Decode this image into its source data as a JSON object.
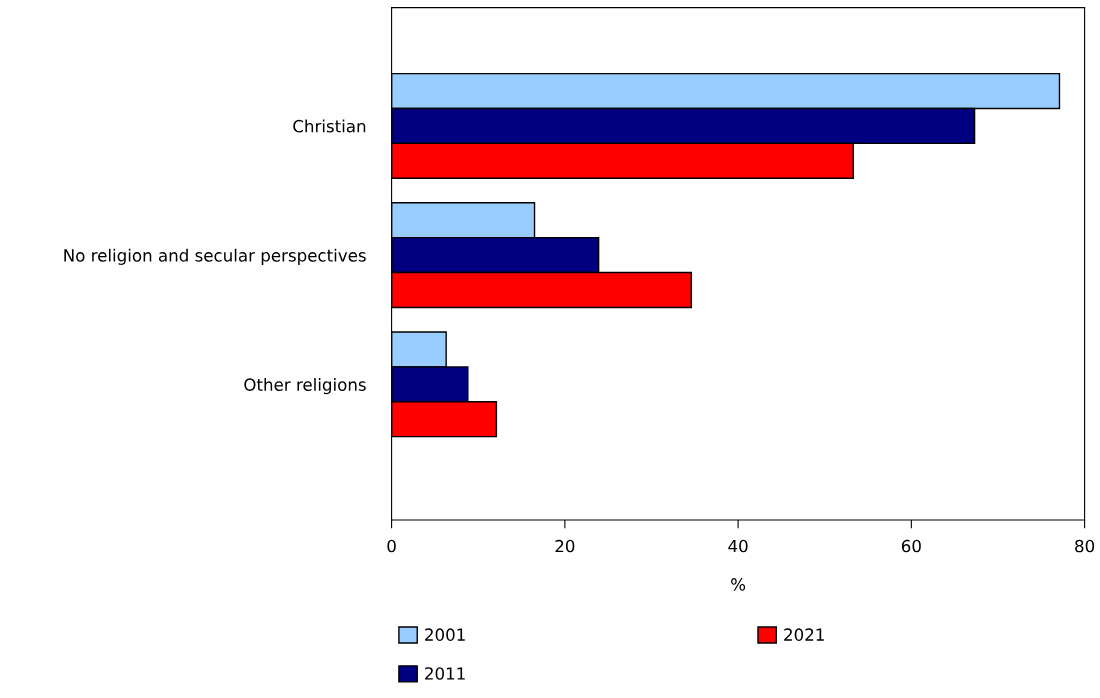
{
  "chart_data": {
    "type": "bar",
    "orientation": "horizontal",
    "xlabel": "%",
    "categories": [
      "Christian",
      "No religion and secular perspectives",
      "Other religions"
    ],
    "series": [
      {
        "name": "2001",
        "color": "#99ccff",
        "values": [
          77.1,
          16.5,
          6.3
        ]
      },
      {
        "name": "2011",
        "color": "#000080",
        "values": [
          67.3,
          23.9,
          8.8
        ]
      },
      {
        "name": "2021",
        "color": "#ff0000",
        "values": [
          53.3,
          34.6,
          12.1
        ]
      }
    ],
    "xlim": [
      0,
      80
    ],
    "xticks": [
      0,
      20,
      40,
      60,
      80
    ],
    "grid": false,
    "legend": "bottom"
  }
}
